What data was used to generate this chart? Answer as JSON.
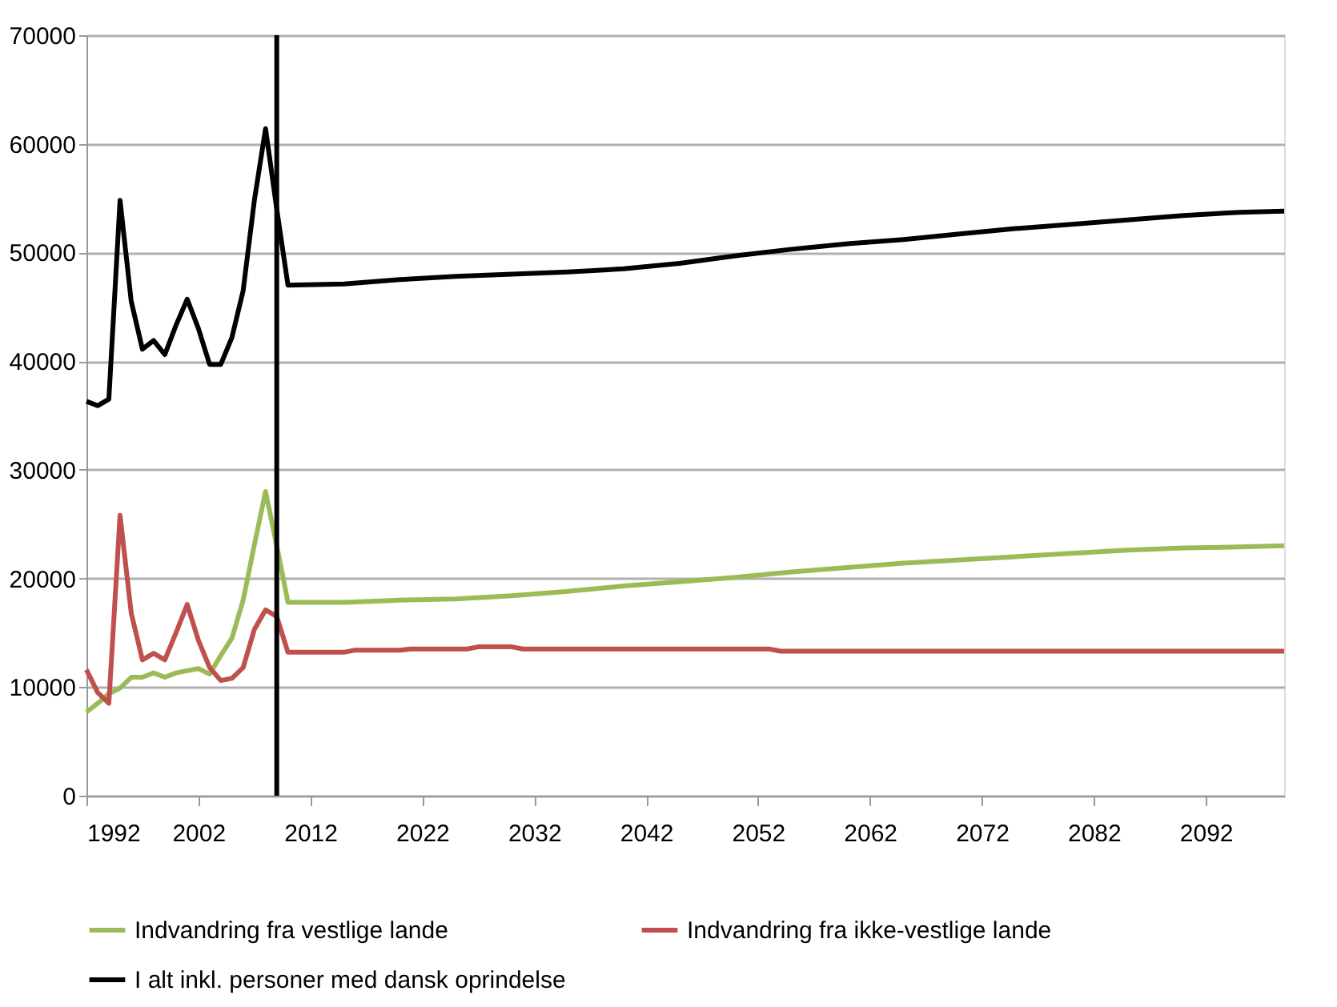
{
  "chart_data": {
    "type": "line",
    "series": [
      {
        "name": "Indvandring fra vestlige lande",
        "color": "#9bbb59",
        "x": [
          1992,
          1993,
          1994,
          1995,
          1996,
          1997,
          1998,
          1999,
          2000,
          2001,
          2002,
          2003,
          2004,
          2005,
          2006,
          2007,
          2008,
          2009,
          2010,
          2015,
          2020,
          2025,
          2030,
          2035,
          2040,
          2045,
          2050,
          2055,
          2060,
          2065,
          2070,
          2075,
          2080,
          2085,
          2090,
          2095,
          2099
        ],
        "values": [
          7700,
          8500,
          9400,
          9900,
          10900,
          10900,
          11300,
          10900,
          11300,
          11500,
          11700,
          11200,
          12900,
          14500,
          18000,
          23100,
          28000,
          23000,
          17800,
          17800,
          18000,
          18100,
          18400,
          18800,
          19300,
          19700,
          20100,
          20600,
          21000,
          21400,
          21700,
          22000,
          22300,
          22600,
          22800,
          22900,
          23000
        ]
      },
      {
        "name": "Indvandring fra ikke-vestlige lande",
        "color": "#c0504d",
        "x": [
          1992,
          1993,
          1994,
          1995,
          1996,
          1997,
          1998,
          1999,
          2000,
          2001,
          2002,
          2003,
          2004,
          2005,
          2006,
          2007,
          2008,
          2009,
          2010,
          2015,
          2016,
          2020,
          2021,
          2026,
          2027,
          2030,
          2031,
          2053,
          2054,
          2099
        ],
        "values": [
          11600,
          9500,
          8500,
          25800,
          16800,
          12500,
          13100,
          12500,
          15000,
          17600,
          14300,
          11800,
          10600,
          10800,
          11800,
          15300,
          17100,
          16500,
          13200,
          13200,
          13400,
          13400,
          13500,
          13500,
          13700,
          13700,
          13500,
          13500,
          13300,
          13300
        ]
      },
      {
        "name": "I alt inkl. personer med dansk oprindelse",
        "color": "#000000",
        "x": [
          1992,
          1993,
          1994,
          1995,
          1996,
          1997,
          1998,
          1999,
          2000,
          2001,
          2002,
          2003,
          2004,
          2005,
          2006,
          2007,
          2008,
          2009,
          2010,
          2015,
          2020,
          2025,
          2030,
          2035,
          2040,
          2045,
          2050,
          2055,
          2060,
          2065,
          2070,
          2075,
          2080,
          2085,
          2090,
          2095,
          2099
        ],
        "values": [
          36300,
          35900,
          36500,
          54800,
          45500,
          41100,
          41900,
          40600,
          43300,
          45700,
          43000,
          39700,
          39700,
          42200,
          46500,
          54800,
          61400,
          54000,
          47000,
          47100,
          47500,
          47800,
          48000,
          48200,
          48500,
          49000,
          49700,
          50300,
          50800,
          51200,
          51700,
          52200,
          52600,
          53000,
          53400,
          53700,
          53800
        ]
      }
    ],
    "xlim": [
      1992,
      2099
    ],
    "xticks": [
      1992,
      2002,
      2012,
      2022,
      2032,
      2042,
      2052,
      2062,
      2072,
      2082,
      2092
    ],
    "ylim": [
      0,
      70000
    ],
    "yticks": [
      0,
      10000,
      20000,
      30000,
      40000,
      50000,
      60000,
      70000
    ],
    "ref_lines": [
      {
        "axis": "x",
        "value": 2009,
        "label": null,
        "color": "#000000"
      }
    ],
    "grid": "y",
    "legend": "bottom",
    "line_style": "solid",
    "marker": "none"
  }
}
